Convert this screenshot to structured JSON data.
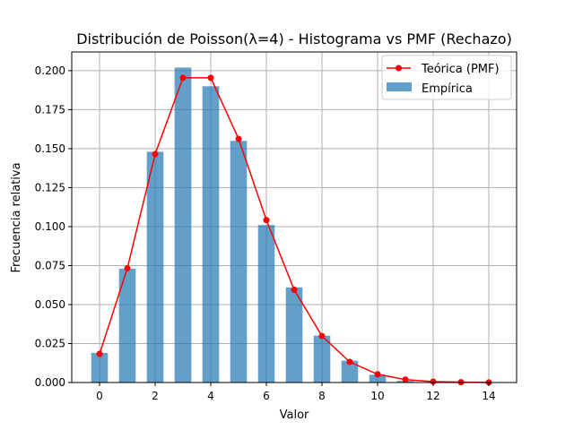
{
  "chart_data": {
    "type": "bar",
    "title": "Distribución de Poisson(λ=4) - Histograma vs PMF (Rechazo)",
    "xlabel": "Valor",
    "ylabel": "Frecuencia relativa",
    "xlim": [
      -1,
      15
    ],
    "ylim": [
      0,
      0.212
    ],
    "grid": true,
    "legend_position": "top-right",
    "x_ticks": [
      "0",
      "2",
      "4",
      "6",
      "8",
      "10",
      "12",
      "14"
    ],
    "y_ticks": [
      "0.000",
      "0.025",
      "0.050",
      "0.075",
      "0.100",
      "0.125",
      "0.150",
      "0.175",
      "0.200"
    ],
    "series": [
      {
        "name": "Empírica",
        "kind": "bar",
        "color": "#1f77b4",
        "x": [
          0,
          1,
          2,
          3,
          4,
          5,
          6,
          7,
          8,
          9,
          10,
          11
        ],
        "values": [
          0.019,
          0.073,
          0.148,
          0.202,
          0.19,
          0.155,
          0.101,
          0.061,
          0.03,
          0.014,
          0.005,
          0.001
        ]
      },
      {
        "name": "Teórica (PMF)",
        "kind": "line",
        "color": "#ff0000",
        "x": [
          0,
          1,
          2,
          3,
          4,
          5,
          6,
          7,
          8,
          9,
          10,
          11,
          12,
          13,
          14
        ],
        "values": [
          0.0183,
          0.0733,
          0.1465,
          0.1954,
          0.1954,
          0.1563,
          0.1042,
          0.0595,
          0.0298,
          0.0132,
          0.0053,
          0.0019,
          0.0006,
          0.0002,
          0.0001
        ]
      }
    ]
  }
}
